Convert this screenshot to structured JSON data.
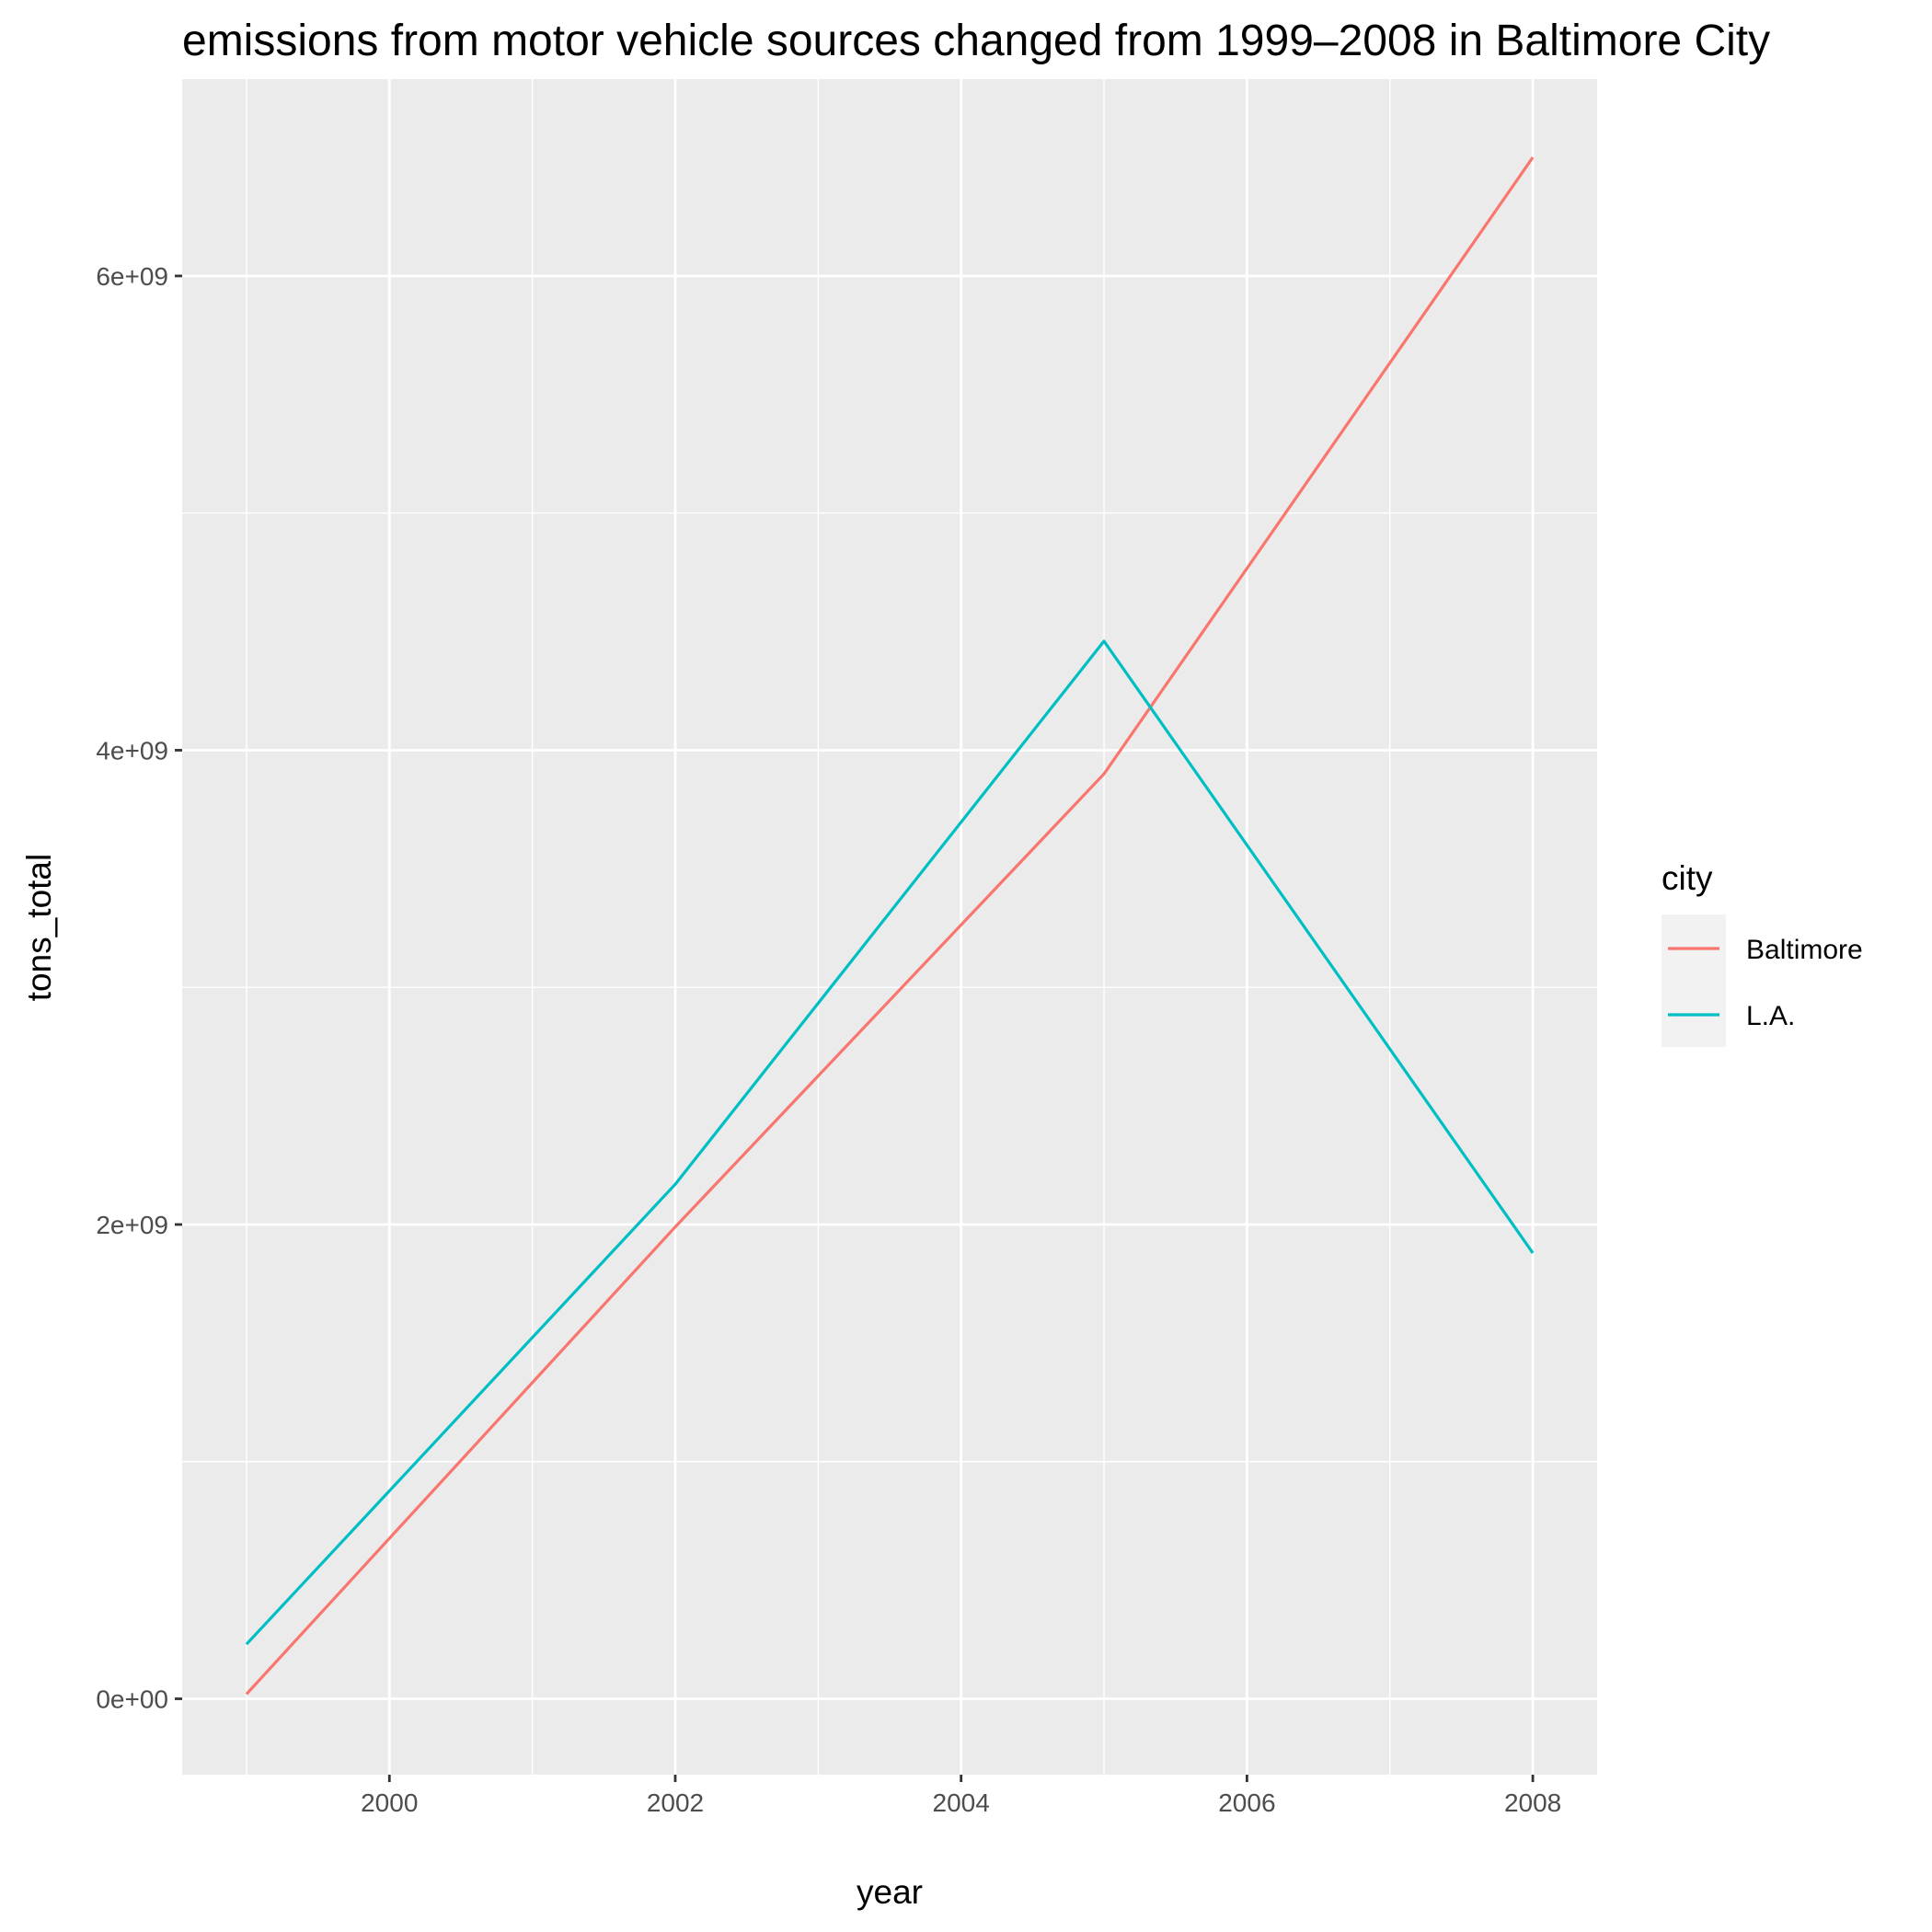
{
  "chart_data": {
    "type": "line",
    "title": "emissions from motor vehicle sources changed from 1999–2008 in Baltimore City",
    "xlabel": "year",
    "ylabel": "tons_total",
    "x": [
      1999,
      2002,
      2005,
      2008
    ],
    "series": [
      {
        "name": "Baltimore",
        "color": "#F8766D",
        "values": [
          20000000,
          1990000000,
          3900000000,
          6500000000
        ]
      },
      {
        "name": "L.A.",
        "color": "#00BFC4",
        "values": [
          230000000,
          2170000000,
          4460000000,
          1880000000
        ]
      }
    ],
    "xlim": [
      1998.55,
      2008.45
    ],
    "ylim": [
      -320000000,
      6830000000
    ],
    "x_ticks": [
      2000,
      2002,
      2004,
      2006,
      2008
    ],
    "x_tick_labels": [
      "2000",
      "2002",
      "2004",
      "2006",
      "2008"
    ],
    "y_ticks": [
      0,
      2000000000,
      4000000000,
      6000000000
    ],
    "y_tick_labels": [
      "0e+00",
      "2e+09",
      "4e+09",
      "6e+09"
    ],
    "x_minor_ticks": [
      1999,
      2001,
      2003,
      2005,
      2007
    ],
    "y_minor_ticks": [
      1000000000,
      3000000000,
      5000000000
    ],
    "legend": {
      "title": "city",
      "position": "right"
    },
    "grid": true,
    "panel_background": "#EBEBEB"
  }
}
